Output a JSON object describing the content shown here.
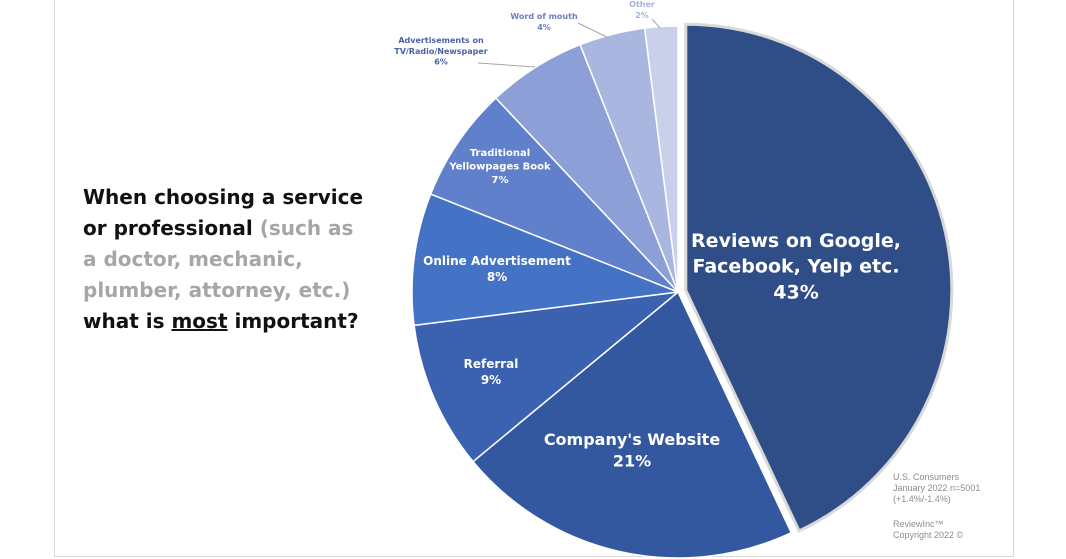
{
  "question": {
    "part1": "When choosing a service or professional",
    "part2": "(such as a doctor, mechanic, plumber, attorney, etc.)",
    "part3": "what is",
    "part4": "most",
    "part5": "important?"
  },
  "footnote": {
    "line1": "U.S. Consumers",
    "line2": "January 2022 n=5001",
    "line3": "(+1.4%/-1.4%)",
    "line4": "ReviewInc™",
    "line5": "Copyright 2022 ©"
  },
  "chart_data": {
    "type": "pie",
    "title": "",
    "slices": [
      {
        "label": "Reviews on Google, Facebook, Yelp etc.",
        "label_lines": [
          "Reviews on Google,",
          "Facebook, Yelp etc."
        ],
        "value_label": "43%",
        "value": 43,
        "color": "#2f4d87"
      },
      {
        "label": "Company's Website",
        "label_lines": [
          "Company's Website"
        ],
        "value_label": "21%",
        "value": 21,
        "color": "#3458a0"
      },
      {
        "label": "Referral",
        "label_lines": [
          "Referral"
        ],
        "value_label": "9%",
        "value": 9,
        "color": "#3a62b0"
      },
      {
        "label": "Online Advertisement",
        "label_lines": [
          "Online Advertisement"
        ],
        "value_label": "8%",
        "value": 8,
        "color": "#4472c4"
      },
      {
        "label": "Traditional Yellowpages Book",
        "label_lines": [
          "Traditional",
          "Yellowpages Book"
        ],
        "value_label": "7%",
        "value": 7,
        "color": "#6080cc"
      },
      {
        "label": "Advertisements on TV/Radio/Newspaper",
        "label_lines": [
          "Advertisements on",
          "TV/Radio/Newspaper"
        ],
        "value_label": "6%",
        "value": 6,
        "color": "#8c9fd6"
      },
      {
        "label": "Word of mouth",
        "label_lines": [
          "Word of mouth"
        ],
        "value_label": "4%",
        "value": 4,
        "color": "#a9b7e0"
      },
      {
        "label": "Other",
        "label_lines": [
          "Other"
        ],
        "value_label": "2%",
        "value": 2,
        "color": "#c9d0ea"
      }
    ]
  }
}
